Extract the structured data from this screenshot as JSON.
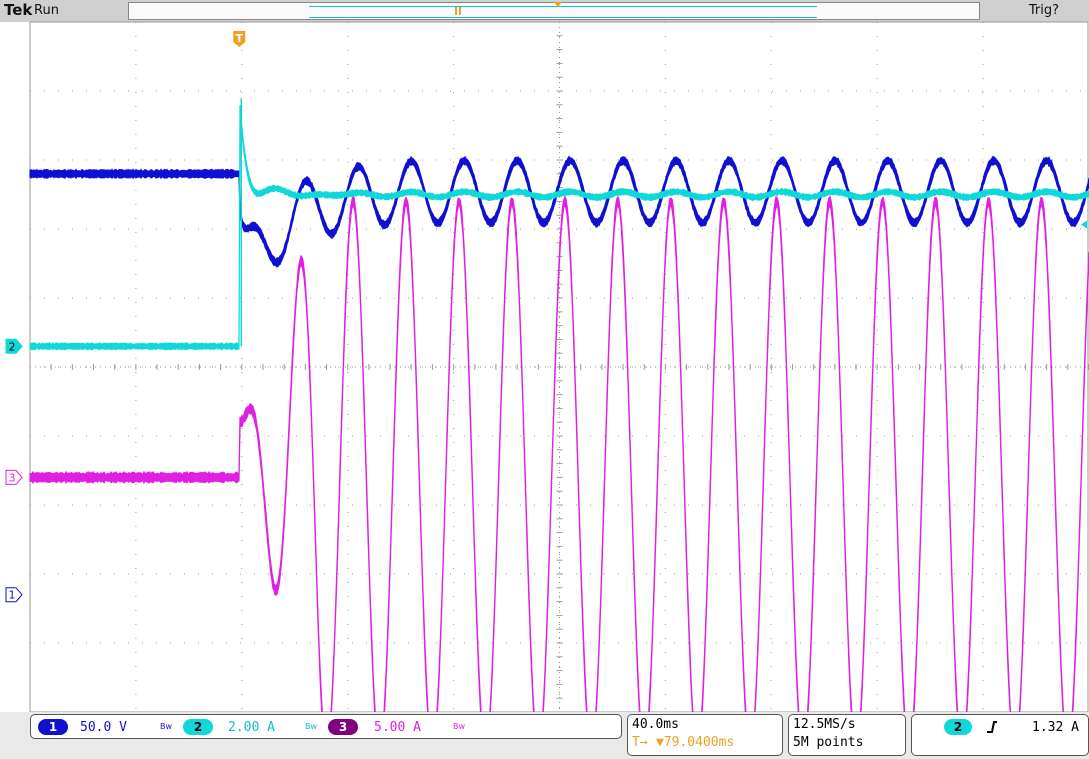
{
  "header": {
    "brand": "Tek",
    "status": "Run",
    "trigger_status": "Trig?",
    "trigger_marker": "T"
  },
  "channels": [
    {
      "number": "1",
      "scale": "50.0 V",
      "color": "#1010d0",
      "marker": "1"
    },
    {
      "number": "2",
      "scale": "2.00 A",
      "color": "#10d8d8",
      "marker": "2"
    },
    {
      "number": "3",
      "scale": "5.00 A",
      "color": "#e020e0",
      "marker": "3"
    }
  ],
  "bandwidth_icon": "Bw",
  "timebase": {
    "scale": "40.0ms",
    "trigger_position": "▼79.0400ms",
    "trigger_icon": "T→"
  },
  "acquisition": {
    "sample_rate": "12.5MS/s",
    "record_length": "5M points"
  },
  "trigger": {
    "source": "2",
    "slope_icon": "rising-edge-icon",
    "level": "1.32 A"
  },
  "chart_data": {
    "type": "line",
    "title": "",
    "xlabel": "",
    "ylabel": "",
    "grid": true,
    "x_divisions": 10,
    "y_divisions": 10,
    "x_unit_per_div": "40.0ms",
    "trigger_time_ms": 79.04,
    "x_range_ms": [
      0,
      400
    ],
    "series": [
      {
        "name": "1",
        "units": "V",
        "volts_per_div": 50.0,
        "steady_before": 305,
        "dip_min": 233,
        "ripple_after_center": 292,
        "ripple_after_peak_to_peak": 45,
        "ripple_period_ms": 20
      },
      {
        "name": "2",
        "units": "A",
        "amps_per_div": 2.0,
        "before": 0.0,
        "spike_peak": 7.2,
        "after": 4.4
      },
      {
        "name": "3",
        "units": "A",
        "amps_per_div": 5.0,
        "before": 0.0,
        "oscillation_amplitude": 20,
        "oscillation_period_ms": 20
      }
    ]
  }
}
